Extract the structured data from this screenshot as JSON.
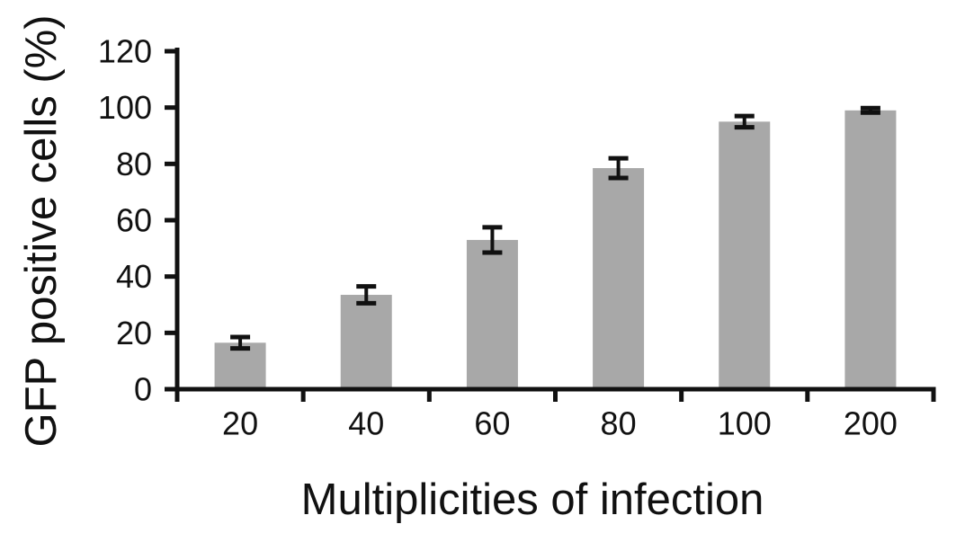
{
  "figure": {
    "background": "#ffffff"
  },
  "chart_data": {
    "type": "bar",
    "title": "",
    "xlabel": "Multiplicities of infection",
    "ylabel": "GFP positive cells (%)",
    "categories": [
      "20",
      "40",
      "60",
      "80",
      "100",
      "200"
    ],
    "values": [
      16.5,
      33.5,
      53,
      78.5,
      95,
      99
    ],
    "error_bars": [
      2,
      3,
      4.5,
      3.5,
      2,
      0.8
    ],
    "ylim": [
      0,
      120
    ],
    "yticks": [
      0,
      20,
      40,
      60,
      80,
      100,
      120
    ],
    "bar_color": "#a8a8a8",
    "axis_color": "#111111",
    "error_bar_color": "#111111",
    "grid": false,
    "legend": false
  }
}
